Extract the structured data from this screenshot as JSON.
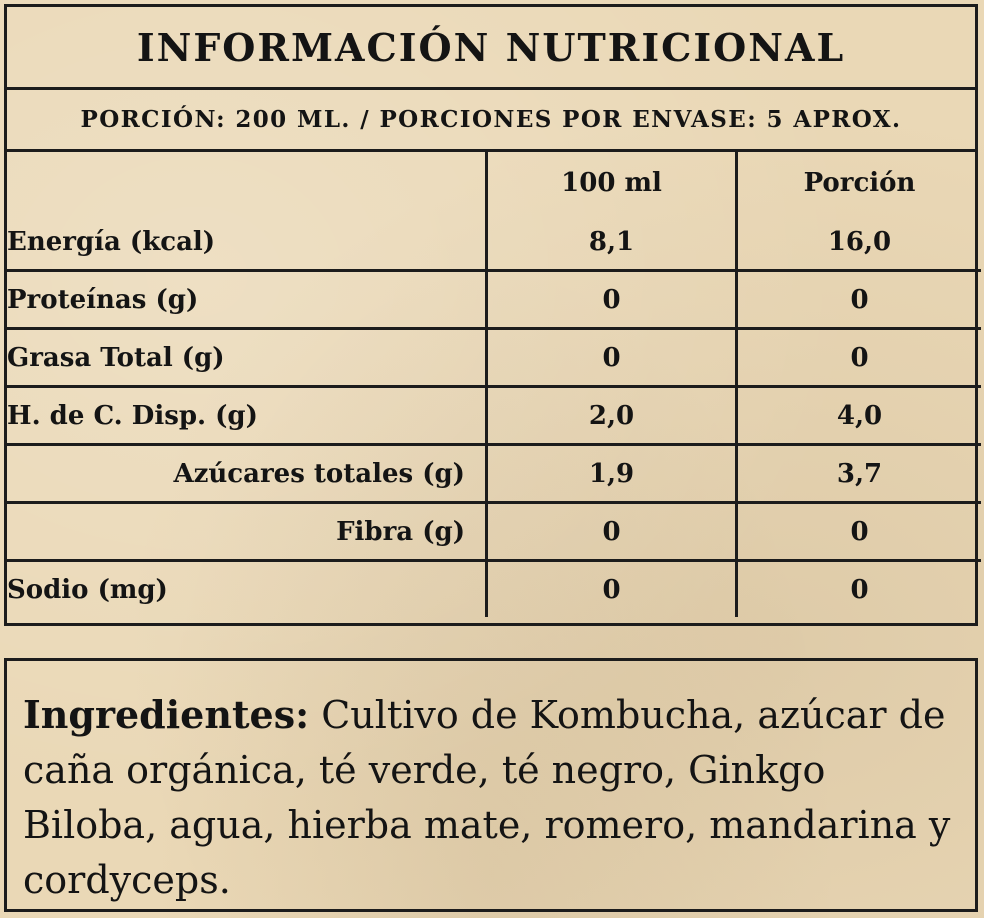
{
  "nutrition": {
    "title": "INFORMACIÓN NUTRICIONAL",
    "serving": "PORCIÓN: 200 ML. / PORCIONES POR ENVASE: 5 APROX.",
    "columns": [
      "",
      "100 ml",
      "Porción"
    ],
    "rows": [
      {
        "label": "Energía (kcal)",
        "per_100ml": "8,1",
        "per_portion": "16,0",
        "indent": false
      },
      {
        "label": "Proteínas (g)",
        "per_100ml": "0",
        "per_portion": "0",
        "indent": false
      },
      {
        "label": "Grasa Total (g)",
        "per_100ml": "0",
        "per_portion": "0",
        "indent": false
      },
      {
        "label": "H. de C. Disp. (g)",
        "per_100ml": "2,0",
        "per_portion": "4,0",
        "indent": false
      },
      {
        "label": "Azúcares totales (g)",
        "per_100ml": "1,9",
        "per_portion": "3,7",
        "indent": true
      },
      {
        "label": "Fibra (g)",
        "per_100ml": "0",
        "per_portion": "0",
        "indent": true
      },
      {
        "label": "Sodio (mg)",
        "per_100ml": "0",
        "per_portion": "0",
        "indent": false
      }
    ]
  },
  "ingredients": {
    "heading": "Ingredientes:",
    "text": "Cultivo de Kombucha, azúcar de caña orgánica, té verde, té negro, Ginkgo Biloba, agua, hierba mate, romero, mandarina y cordyceps."
  },
  "colors": {
    "background": "#ead8b6",
    "border": "#1c1c1c",
    "text": "#141414"
  }
}
